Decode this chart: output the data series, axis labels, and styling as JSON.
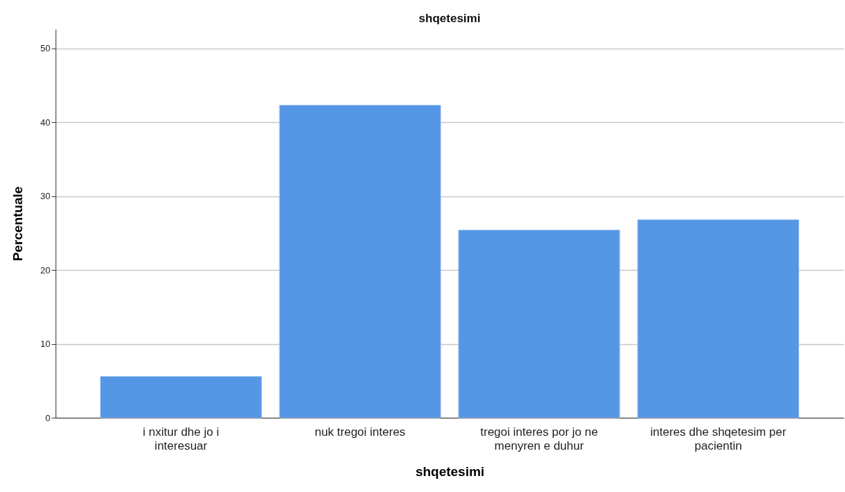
{
  "chart_data": {
    "type": "bar",
    "title": "shqetesimi",
    "xlabel": "shqetesimi",
    "ylabel": "Percentuale",
    "categories": [
      "i nxitur dhe jo i interesuar",
      "nuk tregoi interes",
      "tregoi interes por jo ne menyren e duhur",
      "interes dhe shqetesim per pacientin"
    ],
    "values": [
      5.6,
      42.3,
      25.4,
      26.8
    ],
    "color": "#5596e5",
    "ylim": [
      0,
      52.6
    ],
    "yticks": [
      0,
      10,
      20,
      30,
      40,
      50
    ],
    "grid": "y"
  }
}
